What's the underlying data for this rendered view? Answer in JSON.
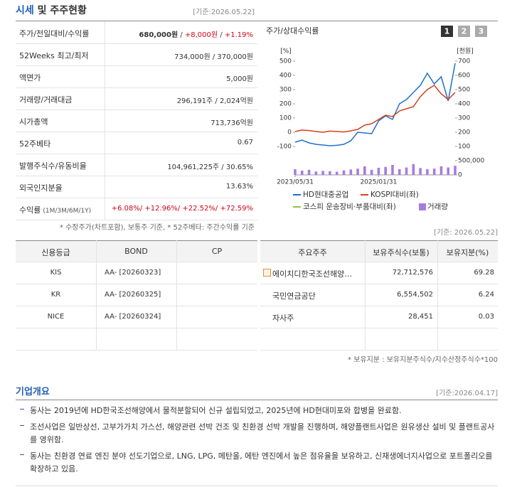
{
  "header": {
    "title": "시세",
    "title_rest": "및 주주현황",
    "date": "[기준:2026.05.22]"
  },
  "quote": {
    "rows": [
      {
        "label": "주가/전일대비/수익률",
        "value": [
          {
            "text": "680,000원",
            "bold": true
          },
          {
            "text": " / "
          },
          {
            "text": "+8,000원",
            "color": "#d0021b"
          },
          {
            "text": " / "
          },
          {
            "text": "+1.19%",
            "color": "#d0021b"
          }
        ]
      },
      {
        "label": "52Weeks 최고/최저",
        "value": [
          {
            "text": "734,000원 / 370,000원"
          }
        ]
      },
      {
        "label": "액면가",
        "value": [
          {
            "text": "5,000원"
          }
        ]
      },
      {
        "label": "거래량/거래대금",
        "value": [
          {
            "text": "296,191주 / 2,024억원"
          }
        ]
      },
      {
        "label": "시가총액",
        "value": [
          {
            "text": "713,736억원"
          }
        ]
      },
      {
        "label": "52주베타",
        "value": [
          {
            "text": "0.67"
          }
        ]
      },
      {
        "label": "발행주식수/유동비율",
        "value": [
          {
            "text": "104,961,225주 / 30.65%"
          }
        ]
      },
      {
        "label": "외국인지분율",
        "value": [
          {
            "text": "13.63%"
          }
        ]
      },
      {
        "label": "수익률",
        "label_sub": "(1M/3M/6M/1Y)",
        "value": [
          {
            "text": "+6.08%/ +12.96%/ +22.52%/ +72.59%",
            "color": "#d0021b"
          }
        ]
      }
    ],
    "note": "* 수정주가(차트포함), 보통주 기준, * 52주베타: 주간수익률 기준"
  },
  "chart_panel": {
    "title": "주가/상대수익률",
    "tabs": [
      "1",
      "2",
      "3"
    ],
    "date": "[기준: 2026.05.22]"
  },
  "chart_data": {
    "type": "line",
    "categories": [
      "2023/05/31",
      null,
      null,
      null,
      null,
      null,
      null,
      null,
      null,
      null,
      null,
      null,
      "2025/01/31",
      null,
      null,
      null,
      null,
      null,
      null,
      null,
      null,
      null,
      null,
      null
    ],
    "y_unit": "[%]",
    "ylim": [
      -100,
      500
    ],
    "yticks": [
      -100,
      0,
      100,
      200,
      300,
      400,
      500
    ],
    "y2_unit": "[천원]",
    "y2lim": [
      100,
      700
    ],
    "y2ticks": [
      100,
      200,
      300,
      400,
      500,
      600,
      700
    ],
    "vol_lim": [
      0,
      850000
    ],
    "vol_ticks": [
      0,
      {
        "value": 500000,
        "label": "500,000"
      }
    ],
    "series": [
      {
        "name": "HD현대중공업",
        "color": "#1f6fd1",
        "axis": "y2",
        "values": [
          130,
          145,
          125,
          115,
          110,
          105,
          108,
          115,
          140,
          200,
          195,
          190,
          280,
          315,
          290,
          400,
          430,
          480,
          530,
          615,
          540,
          590,
          420,
          685
        ]
      },
      {
        "name": "KOSPI대비(좌)",
        "color": "#d2401e",
        "axis": "y",
        "values": [
          5,
          15,
          12,
          5,
          0,
          8,
          5,
          2,
          10,
          20,
          50,
          60,
          90,
          120,
          110,
          150,
          165,
          180,
          250,
          300,
          330,
          270,
          230,
          280
        ]
      },
      {
        "name": "코스피 운송장비·부품대비(좌)",
        "color": "#8dc63f",
        "axis": "y",
        "values": [
          null,
          null,
          null,
          null,
          null,
          null,
          null,
          null,
          null,
          null,
          null,
          null,
          null,
          null,
          null,
          null,
          null,
          null,
          null,
          null,
          null,
          null,
          null,
          null
        ]
      },
      {
        "name": "거래량",
        "color": "#a77ce0",
        "axis": "vol",
        "type": "bar",
        "values": [
          200000,
          150000,
          180000,
          120000,
          140000,
          130000,
          110000,
          160000,
          190000,
          220000,
          300000,
          180000,
          250000,
          280000,
          350000,
          200000,
          260000,
          380000,
          240000,
          200000,
          220000,
          300000,
          260000,
          320000
        ]
      }
    ]
  },
  "credit": {
    "headers": [
      "신용등급",
      "BOND",
      "CP"
    ],
    "rows": [
      {
        "agency": "KIS",
        "bond": "AA-  [20260323]"
      },
      {
        "agency": "KR",
        "bond": "AA-  [20260325]"
      },
      {
        "agency": "NICE",
        "bond": "AA-  [20260324]"
      }
    ]
  },
  "holders": {
    "headers": [
      "주요주주",
      "보유주식수(보통)",
      "보유지분(%)"
    ],
    "rows": [
      [
        "에이치디한국조선해양…",
        "72,712,576",
        "69.28"
      ],
      [
        "국민연금공단",
        "6,554,502",
        "6.24"
      ],
      [
        "자사주",
        "28,451",
        "0.03"
      ]
    ],
    "note": "* 보유지분 : 보유지분주식수/지수산정주식수*100"
  },
  "overview": {
    "title": "기업개요",
    "date": "[기준:2026.04.17]",
    "items": [
      "동사는 2019년에 HD한국조선해양에서 물적분할되어 신규 설립되었고, 2025년에 HD현대미포와 합병을 완료함.",
      "조선사업은 일반상선, 고부가가치 가스선, 해양관련 선박 건조 및 친환경 선박 개발을 진행하며, 해양플랜트사업은 원유생산 설비 및 플랜트공사를 영위함.",
      "동사는 친환경 연료 엔진 분야 선도기업으로, LNG, LPG, 메탄올, 에탄 엔진에서 높은 점유율을 보유하고, 신재생에너지사업으로 포트폴리오를 확장하고 있음."
    ]
  }
}
